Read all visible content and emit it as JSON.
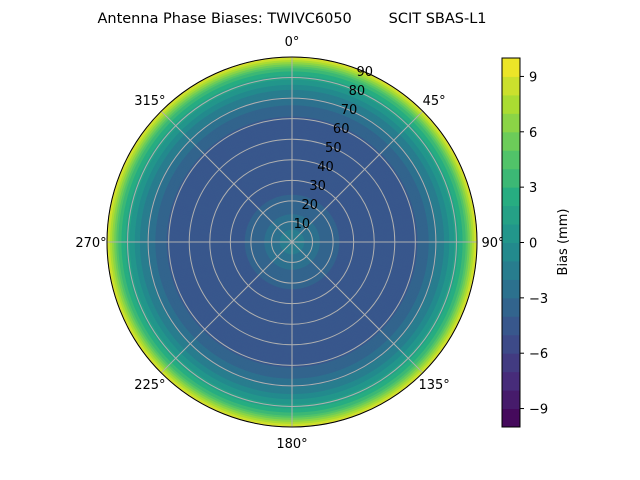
{
  "chart_data": {
    "type": "heatmap",
    "subtype": "polar-filled-contour",
    "title": "Antenna Phase Biases: TWIVC6050        SCIT SBAS-L1",
    "angular_axis": {
      "direction": "clockwise",
      "zero_location": "top",
      "tick_labels": [
        "0°",
        "45°",
        "90°",
        "135°",
        "180°",
        "225°",
        "270°",
        "315°"
      ]
    },
    "radial_axis": {
      "range": [
        0,
        90
      ],
      "ticks": [
        10,
        20,
        30,
        40,
        50,
        60,
        70,
        80,
        90
      ],
      "tick_labels": [
        "10",
        "20",
        "30",
        "40",
        "50",
        "60",
        "70",
        "80",
        "90"
      ]
    },
    "grid": true,
    "colormap": "viridis",
    "colorbar": {
      "label": "Bias (mm)",
      "range": [
        -10,
        10
      ],
      "levels_step": 1,
      "ticks": [
        -9,
        -6,
        -3,
        0,
        3,
        6,
        9
      ],
      "tick_labels": [
        "−9",
        "−6",
        "−3",
        "0",
        "3",
        "6",
        "9"
      ],
      "placement": "right"
    },
    "radial_profile": {
      "zenith_deg": [
        0,
        5,
        10,
        15,
        20,
        30,
        40,
        50,
        60,
        65,
        70,
        75,
        80,
        84,
        87,
        90
      ],
      "bias_mm": [
        -1.5,
        -1.8,
        -2.5,
        -3.2,
        -3.8,
        -4.4,
        -4.7,
        -4.7,
        -4.2,
        -3.4,
        -2.3,
        -0.8,
        1.2,
        3.5,
        6.0,
        9.5
      ]
    }
  }
}
